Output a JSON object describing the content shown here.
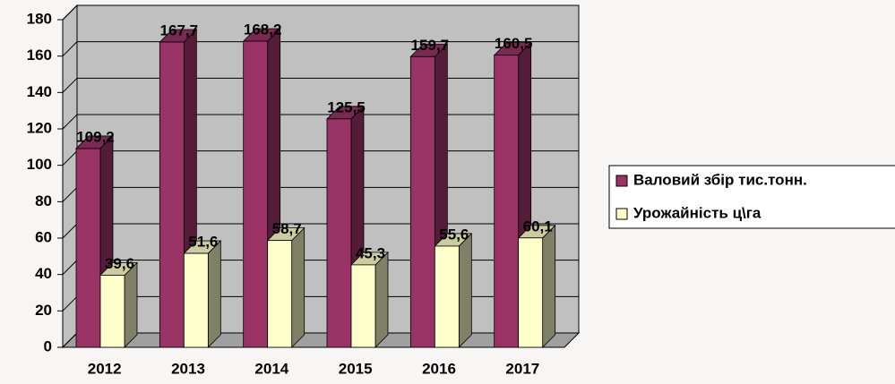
{
  "chart_data": {
    "type": "bar3d",
    "categories": [
      "2012",
      "2013",
      "2014",
      "2015",
      "2016",
      "2017"
    ],
    "series": [
      {
        "name": "Валовий збір тис.тонн.",
        "color": "#993366",
        "values": [
          109.2,
          167.7,
          168.2,
          125.5,
          159.7,
          160.5
        ],
        "value_labels": [
          "109,2",
          "167,7",
          "168,2",
          "125,5",
          "159,7",
          "160,5"
        ]
      },
      {
        "name": "Урожайність ц\\га",
        "color": "#ffffcc",
        "values": [
          39.6,
          51.6,
          58.7,
          45.3,
          55.6,
          60.1
        ],
        "value_labels": [
          "39,6",
          "51,6",
          "58,7",
          "45,3",
          "55,6",
          "60,1"
        ]
      }
    ],
    "ylim": [
      0,
      180
    ],
    "yticks": [
      0,
      20,
      40,
      60,
      80,
      100,
      120,
      140,
      160,
      180
    ],
    "grid": true,
    "legend": "right"
  }
}
